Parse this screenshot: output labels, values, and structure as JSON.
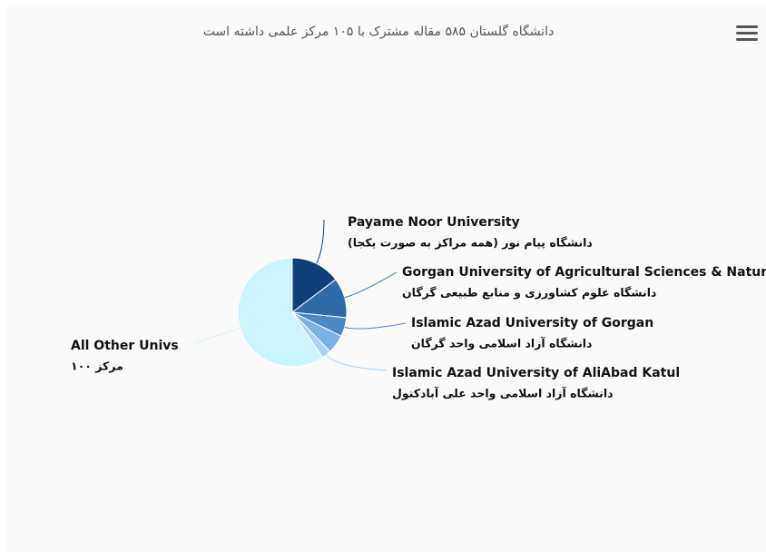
{
  "chart_data": {
    "type": "pie",
    "title": "دانشگاه گلستان ۵۸۵ مقاله مشترک با ۱۰۵ مرکز علمی داشته است",
    "categories": [
      "Payame Noor University",
      "Gorgan University of Agricultural Sciences & Natural Resources",
      "Islamic Azad University of Gorgan",
      null,
      "Islamic Azad University of AliAbad Katul",
      "All Other Univs"
    ],
    "sublabels": [
      "دانشگاه پیام نور (همه مراکز به صورت یکجا)",
      "دانشگاه علوم کشاورزی و منابع طبیعی گرگان",
      "دانشگاه آزاد اسلامی واحد گرگان",
      null,
      "دانشگاه آزاد اسلامی واحد علی آبادکتول",
      "مرکز ۱۰۰"
    ],
    "values": [
      14.7,
      11.9,
      5.6,
      5.6,
      2.8,
      59.4
    ],
    "colors": [
      "#0e3f78",
      "#2e69a8",
      "#4a89c6",
      "#78b2e6",
      "#a9d4f7",
      "#ccf6ff"
    ]
  }
}
